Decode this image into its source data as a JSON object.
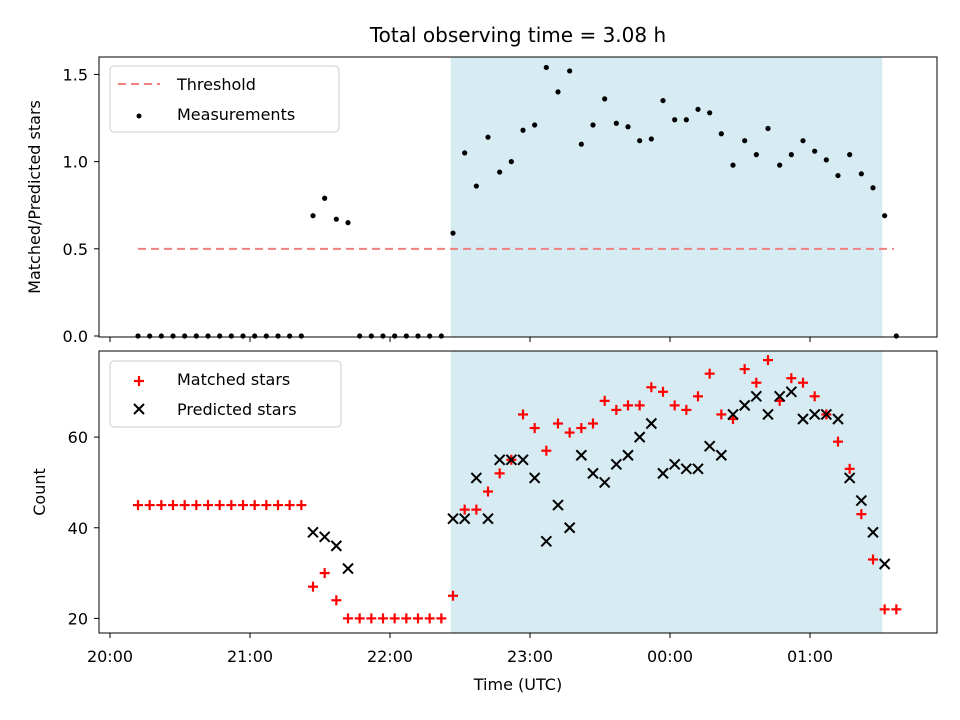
{
  "chart_data": [
    {
      "type": "scatter",
      "title": "Total observing time = 3.08 h",
      "xlabel": "",
      "ylabel": "Matched/Predicted stars",
      "ylim": [
        0,
        1.6
      ],
      "yticks": [
        "0.0",
        "0.5",
        "1.0",
        "1.5"
      ],
      "threshold": {
        "name": "Threshold",
        "value": 0.5,
        "x_start": "20:12",
        "x_end": "01:36",
        "color": "#f08080"
      },
      "observing_window": {
        "start": "22:26",
        "end": "01:31",
        "color": "#add8e6"
      },
      "series": [
        {
          "name": "Measurements",
          "color": "#000000",
          "x": [
            "20:12",
            "20:17",
            "20:22",
            "20:27",
            "20:32",
            "20:37",
            "20:42",
            "20:47",
            "20:52",
            "20:57",
            "21:02",
            "21:07",
            "21:12",
            "21:17",
            "21:22",
            "21:27",
            "21:32",
            "21:37",
            "21:42",
            "21:47",
            "21:52",
            "21:57",
            "22:02",
            "22:07",
            "22:12",
            "22:17",
            "22:22",
            "22:27",
            "22:32",
            "22:37",
            "22:42",
            "22:47",
            "22:52",
            "22:57",
            "23:02",
            "23:07",
            "23:12",
            "23:17",
            "23:22",
            "23:27",
            "23:32",
            "23:37",
            "23:42",
            "23:47",
            "23:52",
            "23:57",
            "00:02",
            "00:07",
            "00:12",
            "00:17",
            "00:22",
            "00:27",
            "00:32",
            "00:37",
            "00:42",
            "00:47",
            "00:52",
            "00:57",
            "01:02",
            "01:07",
            "01:12",
            "01:17",
            "01:22",
            "01:27",
            "01:32",
            "01:37"
          ],
          "y": [
            0,
            0,
            0,
            0,
            0,
            0,
            0,
            0,
            0,
            0,
            0,
            0,
            0,
            0,
            0,
            0.69,
            0.79,
            0.67,
            0.65,
            0,
            0,
            0,
            0,
            0,
            0,
            0,
            0,
            0.59,
            1.05,
            0.86,
            1.14,
            0.94,
            1.0,
            1.18,
            1.21,
            1.54,
            1.4,
            1.52,
            1.1,
            1.21,
            1.36,
            1.22,
            1.2,
            1.12,
            1.13,
            1.35,
            1.24,
            1.24,
            1.3,
            1.28,
            1.16,
            0.98,
            1.12,
            1.04,
            1.19,
            0.98,
            1.04,
            1.12,
            1.06,
            1.01,
            0.92,
            1.04,
            0.93,
            0.85,
            0.69,
            0
          ]
        }
      ],
      "legend": "upper-left"
    },
    {
      "type": "scatter",
      "title": "",
      "xlabel": "Time (UTC)",
      "ylabel": "Count",
      "ylim": [
        17,
        79
      ],
      "yticks": [
        "20",
        "40",
        "60"
      ],
      "xticks": [
        "20:00",
        "21:00",
        "22:00",
        "23:00",
        "00:00",
        "01:00"
      ],
      "observing_window": {
        "start": "22:26",
        "end": "01:31",
        "color": "#add8e6"
      },
      "series": [
        {
          "name": "Matched stars",
          "marker": "plus",
          "color": "#ff0000",
          "x": [
            "20:12",
            "20:17",
            "20:22",
            "20:27",
            "20:32",
            "20:37",
            "20:42",
            "20:47",
            "20:52",
            "20:57",
            "21:02",
            "21:07",
            "21:12",
            "21:17",
            "21:22",
            "21:27",
            "21:32",
            "21:37",
            "21:42",
            "21:47",
            "21:52",
            "21:57",
            "22:02",
            "22:07",
            "22:12",
            "22:17",
            "22:22",
            "22:27",
            "22:32",
            "22:37",
            "22:42",
            "22:47",
            "22:52",
            "22:57",
            "23:02",
            "23:07",
            "23:12",
            "23:17",
            "23:22",
            "23:27",
            "23:32",
            "23:37",
            "23:42",
            "23:47",
            "23:52",
            "23:57",
            "00:02",
            "00:07",
            "00:12",
            "00:17",
            "00:22",
            "00:27",
            "00:32",
            "00:37",
            "00:42",
            "00:47",
            "00:52",
            "00:57",
            "01:02",
            "01:07",
            "01:12",
            "01:17",
            "01:22",
            "01:27",
            "01:32",
            "01:37"
          ],
          "y": [
            45,
            45,
            45,
            45,
            45,
            45,
            45,
            45,
            45,
            45,
            45,
            45,
            45,
            45,
            45,
            27,
            30,
            24,
            20,
            20,
            20,
            20,
            20,
            20,
            20,
            20,
            20,
            25,
            44,
            44,
            48,
            52,
            55,
            65,
            62,
            57,
            63,
            61,
            62,
            63,
            68,
            66,
            67,
            67,
            71,
            70,
            67,
            66,
            69,
            74,
            65,
            64,
            75,
            72,
            77,
            68,
            73,
            72,
            69,
            65,
            59,
            53,
            43,
            33,
            22,
            22
          ]
        },
        {
          "name": "Predicted stars",
          "marker": "x",
          "color": "#000000",
          "x": [
            "21:27",
            "21:32",
            "21:37",
            "21:42",
            "22:27",
            "22:32",
            "22:37",
            "22:42",
            "22:47",
            "22:52",
            "22:57",
            "23:02",
            "23:07",
            "23:12",
            "23:17",
            "23:22",
            "23:27",
            "23:32",
            "23:37",
            "23:42",
            "23:47",
            "23:52",
            "23:57",
            "00:02",
            "00:07",
            "00:12",
            "00:17",
            "00:22",
            "00:27",
            "00:32",
            "00:37",
            "00:42",
            "00:47",
            "00:52",
            "00:57",
            "01:02",
            "01:07",
            "01:12",
            "01:17",
            "01:22",
            "01:27",
            "01:32"
          ],
          "y": [
            39,
            38,
            36,
            31,
            42,
            42,
            51,
            42,
            55,
            55,
            55,
            51,
            37,
            45,
            40,
            56,
            52,
            50,
            54,
            56,
            60,
            63,
            52,
            54,
            53,
            53,
            58,
            56,
            65,
            67,
            69,
            65,
            69,
            70,
            64,
            65,
            65,
            64,
            51,
            46,
            39,
            32
          ]
        }
      ],
      "legend": "upper-left"
    }
  ]
}
